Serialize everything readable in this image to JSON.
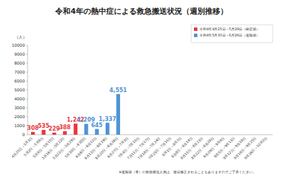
{
  "chart_data": {
    "type": "bar",
    "title": "令和4年の熱中症による救急搬送状況（週別推移）",
    "y_label": "（人）",
    "categories": [
      "4月25日～5月1日",
      "5月2日～5月8日",
      "5月9日～5月15日",
      "5月16日～5月22日",
      "5月23日～5月29日",
      "5月30日～6月5日",
      "6月6日～6月12日",
      "6月13日～6月19日",
      "6月20日～6月26日",
      "6月27日～7月3日",
      "7月4日～7月10日",
      "7月11日～7月17日",
      "7月18日～7月24日",
      "7月25日～7月31日",
      "8月1日～8月7日",
      "8月8日～8月14日",
      "8月15日～8月21日",
      "8月22日～8月28日",
      "8月29日～9月4日",
      "9月5日～9月11日",
      "9月12日～9月18日",
      "9月19日～9月25日",
      "9月26日～10月2日"
    ],
    "series": [
      {
        "name": "令和4年4月25日～5月29日（確定値）",
        "color": "#e8383d",
        "values": [
          308,
          535,
          229,
          388,
          1242,
          null,
          null,
          null,
          null,
          null,
          null,
          null,
          null,
          null,
          null,
          null,
          null,
          null,
          null,
          null,
          null,
          null,
          null
        ],
        "value_labels": [
          "308",
          "535",
          "229",
          "388",
          "1,242",
          null,
          null,
          null,
          null,
          null,
          null,
          null,
          null,
          null,
          null,
          null,
          null,
          null,
          null,
          null,
          null,
          null,
          null
        ]
      },
      {
        "name": "令和4年5月30日～6月26日（速報値）",
        "color": "#4f93d6",
        "values": [
          null,
          null,
          null,
          null,
          null,
          1209,
          645,
          1337,
          4551,
          null,
          null,
          null,
          null,
          null,
          null,
          null,
          null,
          null,
          null,
          null,
          null,
          null,
          null
        ],
        "value_labels": [
          null,
          null,
          null,
          null,
          null,
          "1,209",
          "645",
          "1,337",
          "4,551",
          null,
          null,
          null,
          null,
          null,
          null,
          null,
          null,
          null,
          null,
          null,
          null,
          null,
          null
        ]
      }
    ],
    "ylim": [
      0,
      10000
    ],
    "yticks": [
      0,
      1000,
      2000,
      3000,
      4000,
      5000,
      6000,
      7000,
      8000,
      9000,
      10000
    ],
    "grid": false,
    "data_labels": true,
    "legend": "top-right",
    "annotations": [
      "※速報値（青）の救急搬送人員は、後日修正されることもありますのでご了承ください。"
    ]
  }
}
